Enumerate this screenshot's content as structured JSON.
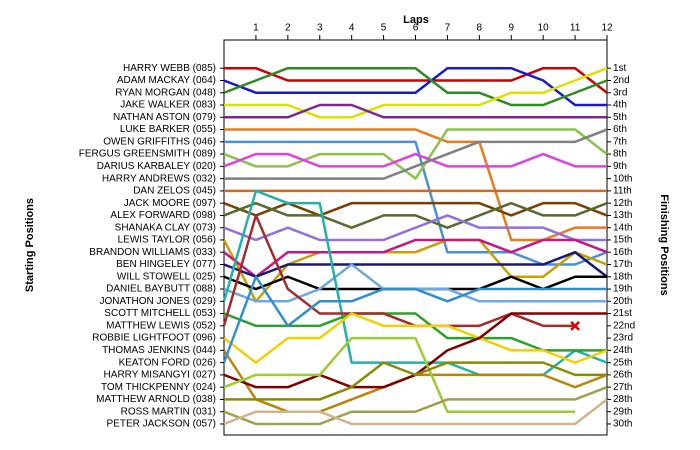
{
  "chart_data": {
    "type": "lap",
    "title": "Laps",
    "left_label": "Starting Positions",
    "right_label": "Finishing Positions",
    "x": [
      0,
      1,
      2,
      3,
      4,
      5,
      6,
      7,
      8,
      9,
      10,
      11,
      12
    ],
    "xlim": [
      0,
      12
    ],
    "xticks": [
      1,
      2,
      3,
      4,
      5,
      6,
      7,
      8,
      9,
      10,
      11,
      12
    ],
    "ylim": [
      -1.3,
      30.9
    ],
    "yticks": [
      {
        "value": 1,
        "label": "1st"
      },
      {
        "value": 2,
        "label": "2nd"
      },
      {
        "value": 3,
        "label": "3rd"
      },
      {
        "value": 4,
        "label": "4th"
      },
      {
        "value": 5,
        "label": "5th"
      },
      {
        "value": 6,
        "label": "6th"
      },
      {
        "value": 7,
        "label": "7th"
      },
      {
        "value": 8,
        "label": "8th"
      },
      {
        "value": 9,
        "label": "9th"
      },
      {
        "value": 10,
        "label": "10th"
      },
      {
        "value": 11,
        "label": "11th"
      },
      {
        "value": 12,
        "label": "12th"
      },
      {
        "value": 13,
        "label": "13th"
      },
      {
        "value": 14,
        "label": "14th"
      },
      {
        "value": 15,
        "label": "15th"
      },
      {
        "value": 16,
        "label": "16th"
      },
      {
        "value": 17,
        "label": "17th"
      },
      {
        "value": 18,
        "label": "18th"
      },
      {
        "value": 19,
        "label": "19th"
      },
      {
        "value": 20,
        "label": "20th"
      },
      {
        "value": 21,
        "label": "21st"
      },
      {
        "value": 22,
        "label": "22nd"
      },
      {
        "value": 23,
        "label": "23rd"
      },
      {
        "value": 24,
        "label": "24th"
      },
      {
        "value": 25,
        "label": "25th"
      },
      {
        "value": 26,
        "label": "26th"
      },
      {
        "value": 27,
        "label": "27th"
      },
      {
        "value": 28,
        "label": "28th"
      },
      {
        "value": 29,
        "label": "29th"
      },
      {
        "value": 30,
        "label": "30th"
      }
    ],
    "series": [
      {
        "name": "HARRY WEBB (085)",
        "color": "#cc0000",
        "values": [
          1,
          1,
          2,
          2,
          2,
          2,
          2,
          2,
          2,
          2,
          1,
          1,
          3
        ]
      },
      {
        "name": "ADAM MACKAY (064)",
        "color": "#1a1acc",
        "values": [
          2,
          3,
          3,
          3,
          3,
          3,
          3,
          1,
          1,
          1,
          2,
          4,
          4
        ]
      },
      {
        "name": "RYAN MORGAN (048)",
        "color": "#2e8b22",
        "values": [
          3,
          2,
          1,
          1,
          1,
          1,
          1,
          3,
          3,
          4,
          4,
          3,
          2
        ]
      },
      {
        "name": "JAKE WALKER (083)",
        "color": "#e0e000",
        "values": [
          4,
          4,
          4,
          5,
          5,
          4,
          4,
          4,
          4,
          3,
          3,
          2,
          1
        ]
      },
      {
        "name": "NATHAN ASTON (079)",
        "color": "#7a2a8a",
        "values": [
          5,
          5,
          5,
          4,
          4,
          5,
          5,
          5,
          5,
          5,
          5,
          5,
          5
        ]
      },
      {
        "name": "LUKE BARKER (055)",
        "color": "#e87b1e",
        "values": [
          6,
          6,
          6,
          6,
          6,
          6,
          6,
          7,
          7,
          15,
          15,
          14,
          14
        ]
      },
      {
        "name": "OWEN GRIFFITHS (046)",
        "color": "#4a90d9",
        "values": [
          7,
          7,
          7,
          7,
          7,
          7,
          7,
          16,
          16,
          16,
          17,
          17,
          16
        ]
      },
      {
        "name": "FERGUS GREENSMITH (089)",
        "color": "#8bc34a",
        "values": [
          8,
          9,
          9,
          8,
          8,
          8,
          10,
          6,
          6,
          6,
          6,
          6,
          8
        ]
      },
      {
        "name": "DARIUS KARBALEY (020)",
        "color": "#e040e0",
        "values": [
          9,
          8,
          8,
          9,
          9,
          9,
          8,
          9,
          9,
          9,
          8,
          9,
          9
        ]
      },
      {
        "name": "HARRY ANDREWS (032)",
        "color": "#808080",
        "values": [
          10,
          10,
          10,
          10,
          10,
          10,
          9,
          8,
          7,
          7,
          7,
          7,
          6
        ]
      },
      {
        "name": "DAN ZELOS (045)",
        "color": "#d2691e",
        "values": [
          11,
          11,
          11,
          11,
          11,
          11,
          11,
          11,
          11,
          11,
          11,
          11,
          11
        ]
      },
      {
        "name": "JACK MOORE (097)",
        "color": "#7b3f00",
        "values": [
          12,
          13,
          12,
          13,
          12,
          12,
          12,
          12,
          12,
          13,
          12,
          12,
          13
        ]
      },
      {
        "name": "ALEX FORWARD (098)",
        "color": "#556b2f",
        "values": [
          13,
          12,
          13,
          13,
          14,
          13,
          13,
          14,
          13,
          12,
          13,
          13,
          12
        ]
      },
      {
        "name": "SHANAKA CLAY (073)",
        "color": "#9370db",
        "values": [
          14,
          15,
          14,
          15,
          15,
          15,
          14,
          13,
          14,
          14,
          14,
          15,
          15
        ]
      },
      {
        "name": "LEWIS TAYLOR (056)",
        "color": "#c8a000",
        "values": [
          15,
          20,
          17,
          16,
          16,
          16,
          16,
          15,
          15,
          18,
          18,
          16,
          17
        ]
      },
      {
        "name": "BRANDON WILLIAMS (033)",
        "color": "#c71585",
        "values": [
          16,
          18,
          16,
          16,
          16,
          16,
          15,
          15,
          15,
          16,
          15,
          15,
          16
        ]
      },
      {
        "name": "BEN HINGELEY (077)",
        "color": "#191970",
        "values": [
          17,
          18,
          17,
          17,
          17,
          17,
          17,
          17,
          17,
          17,
          17,
          16,
          18
        ]
      },
      {
        "name": "WILL STOWELL (025)",
        "color": "#000000",
        "values": [
          18,
          19,
          18,
          19,
          19,
          19,
          19,
          19,
          19,
          18,
          19,
          18,
          18
        ]
      },
      {
        "name": "DANIEL BAYBUTT (088)",
        "color": "#6fa8dc",
        "values": [
          19,
          20,
          20,
          19,
          17,
          19,
          19,
          19,
          20,
          20,
          20,
          20,
          20
        ]
      },
      {
        "name": "JONATHON JONES (029)",
        "color": "#20b2aa",
        "values": [
          20,
          11,
          12,
          12,
          25,
          25,
          25,
          25,
          26,
          26,
          26,
          24,
          25
        ]
      },
      {
        "name": "SCOTT MITCHELL (053)",
        "color": "#2ca02c",
        "values": [
          21,
          22,
          22,
          22,
          21,
          21,
          21,
          23,
          23,
          23,
          24,
          24,
          24
        ]
      },
      {
        "name": "MATTHEW LEWIS (052)",
        "color": "#a52a2a",
        "values": [
          22,
          13,
          19,
          21,
          21,
          21,
          22,
          22,
          22,
          21,
          22,
          22,
          null
        ],
        "retired": true
      },
      {
        "name": "ROBBIE LIGHTFOOT (096)",
        "color": "#f0d000",
        "values": [
          23,
          25,
          23,
          23,
          21,
          22,
          22,
          22,
          23,
          24,
          24,
          25,
          24
        ]
      },
      {
        "name": "THOMAS JENKINS (044)",
        "color": "#b8860b",
        "values": [
          24,
          28,
          29,
          29,
          28,
          27,
          26,
          26,
          26,
          26,
          26,
          27,
          26
        ]
      },
      {
        "name": "KEATON FORD (026)",
        "color": "#2f8fcf",
        "values": [
          25,
          18,
          22,
          20,
          20,
          19,
          19,
          20,
          19,
          19,
          19,
          19,
          19
        ]
      },
      {
        "name": "HARRY MISANGYI (027)",
        "color": "#800000",
        "values": [
          26,
          27,
          27,
          26,
          27,
          27,
          26,
          24,
          23,
          21,
          21,
          21,
          21
        ]
      },
      {
        "name": "TOM THICKPENNY (024)",
        "color": "#9acd32",
        "values": [
          27,
          26,
          26,
          26,
          23,
          23,
          23,
          29,
          29,
          29,
          29,
          29,
          null
        ]
      },
      {
        "name": "MATTHEW ARNOLD (038)",
        "color": "#8b8b00",
        "values": [
          28,
          28,
          28,
          28,
          27,
          25,
          26,
          25,
          25,
          25,
          25,
          26,
          26
        ]
      },
      {
        "name": "ROSS MARTIN (031)",
        "color": "#a0a050",
        "values": [
          29,
          30,
          30,
          30,
          29,
          29,
          29,
          28,
          28,
          28,
          28,
          28,
          27
        ]
      },
      {
        "name": "PETER JACKSON (057)",
        "color": "#d2b48c",
        "values": [
          30,
          29,
          29,
          29,
          30,
          30,
          30,
          30,
          30,
          30,
          30,
          30,
          28
        ]
      }
    ]
  }
}
